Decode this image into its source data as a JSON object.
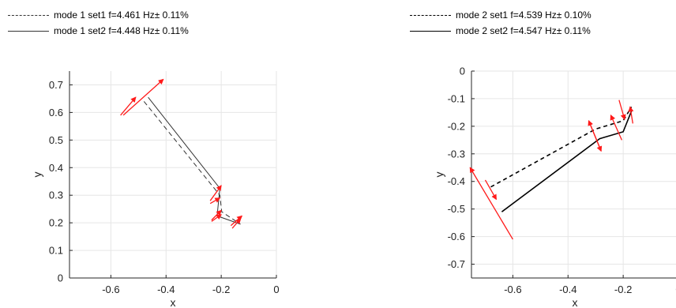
{
  "legend_left": [
    {
      "label": "mode 1 set1 f=4.461 Hz± 0.11%",
      "style": "dashed"
    },
    {
      "label": "mode 1 set2 f=4.448 Hz± 0.11%",
      "style": "solid"
    }
  ],
  "legend_right": [
    {
      "label": "mode 2 set1 f=4.539 Hz± 0.10%",
      "style": "dashed"
    },
    {
      "label": "mode 2 set2 f=4.547 Hz± 0.11%",
      "style": "solid"
    }
  ],
  "colors": {
    "line": "#333333",
    "line_bold": "#000000",
    "arrow": "#ff1a1a",
    "grid": "#e6e6e6",
    "axis": "#262626"
  },
  "chart_data": [
    {
      "type": "line",
      "xlabel": "x",
      "ylabel": "y",
      "xlim": [
        -0.75,
        0
      ],
      "ylim": [
        0,
        0.75
      ],
      "xticks": [
        -0.6,
        -0.4,
        -0.2,
        0
      ],
      "xtick_labels": [
        "-0.6",
        "-0.4",
        "-0.2",
        "0"
      ],
      "yticks": [
        0,
        0.1,
        0.2,
        0.3,
        0.4,
        0.5,
        0.6,
        0.7
      ],
      "ytick_labels": [
        "0",
        "0.1",
        "0.2",
        "0.3",
        "0.4",
        "0.5",
        "0.6",
        "0.7"
      ],
      "grid": true,
      "series": [
        {
          "style": "dashed",
          "x": [
            -0.48,
            -0.205,
            -0.198,
            -0.145
          ],
          "y": [
            0.64,
            0.3,
            0.24,
            0.205
          ]
        },
        {
          "style": "solid",
          "x": [
            -0.465,
            -0.205,
            -0.215,
            -0.13
          ],
          "y": [
            0.655,
            0.325,
            0.225,
            0.195
          ]
        }
      ],
      "arrows": [
        {
          "x": [
            -0.555,
            -0.41
          ],
          "y": [
            0.59,
            0.72
          ]
        },
        {
          "x": [
            -0.565,
            -0.51
          ],
          "y": [
            0.59,
            0.655
          ]
        },
        {
          "x": [
            -0.24,
            -0.2
          ],
          "y": [
            0.28,
            0.335
          ]
        },
        {
          "x": [
            -0.24,
            -0.205
          ],
          "y": [
            0.27,
            0.29
          ]
        },
        {
          "x": [
            -0.235,
            -0.2
          ],
          "y": [
            0.21,
            0.245
          ]
        },
        {
          "x": [
            -0.235,
            -0.2
          ],
          "y": [
            0.205,
            0.23
          ]
        },
        {
          "x": [
            -0.16,
            -0.13
          ],
          "y": [
            0.18,
            0.215
          ]
        },
        {
          "x": [
            -0.165,
            -0.125
          ],
          "y": [
            0.19,
            0.225
          ]
        }
      ]
    },
    {
      "type": "line",
      "xlabel": "x",
      "ylabel": "y",
      "xlim": [
        -0.75,
        0
      ],
      "ylim": [
        -0.75,
        0
      ],
      "xticks": [
        -0.6,
        -0.4,
        -0.2,
        0
      ],
      "xtick_labels": [
        "-0.6",
        "-0.4",
        "-0.2",
        "0"
      ],
      "yticks": [
        0,
        -0.1,
        -0.2,
        -0.3,
        -0.4,
        -0.5,
        -0.6,
        -0.7
      ],
      "ytick_labels": [
        "0",
        "-0.1",
        "-0.2",
        "-0.3",
        "-0.4",
        "-0.5",
        "-0.6",
        "-0.7"
      ],
      "grid": true,
      "series": [
        {
          "style": "dashed",
          "x": [
            -0.68,
            -0.3,
            -0.2,
            -0.17
          ],
          "y": [
            -0.42,
            -0.21,
            -0.18,
            -0.13
          ]
        },
        {
          "style": "solid",
          "x": [
            -0.64,
            -0.285,
            -0.2,
            -0.17
          ],
          "y": [
            -0.51,
            -0.245,
            -0.22,
            -0.145
          ]
        }
      ],
      "arrows": [
        {
          "x": [
            -0.6,
            -0.755
          ],
          "y": [
            -0.61,
            -0.35
          ]
        },
        {
          "x": [
            -0.7,
            -0.66
          ],
          "y": [
            -0.395,
            -0.465
          ]
        },
        {
          "x": [
            -0.28,
            -0.325
          ],
          "y": [
            -0.29,
            -0.18
          ]
        },
        {
          "x": [
            -0.325,
            -0.28
          ],
          "y": [
            -0.18,
            -0.29
          ]
        },
        {
          "x": [
            -0.205,
            -0.245
          ],
          "y": [
            -0.25,
            -0.16
          ]
        },
        {
          "x": [
            -0.215,
            -0.195
          ],
          "y": [
            -0.105,
            -0.175
          ]
        },
        {
          "x": [
            -0.165,
            -0.175
          ],
          "y": [
            -0.19,
            -0.13
          ]
        }
      ]
    }
  ]
}
